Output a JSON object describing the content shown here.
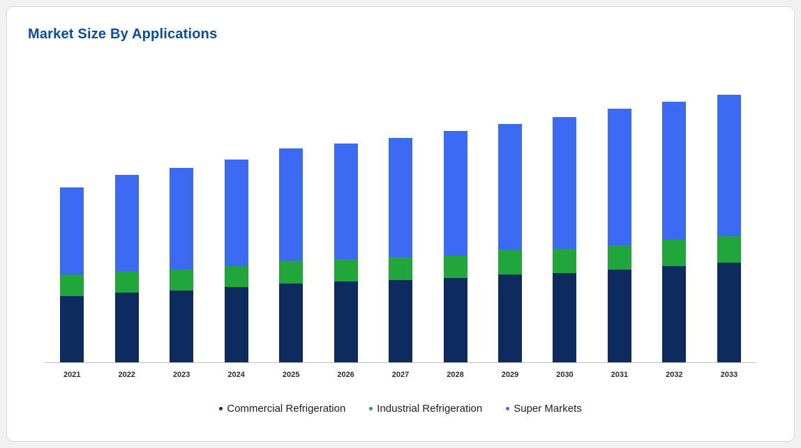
{
  "header": {
    "title": "Market Size By Applications"
  },
  "chart_data": {
    "type": "bar",
    "stacked": true,
    "title": "Market Size By Applications",
    "xlabel": "",
    "ylabel": "",
    "grid": false,
    "legend_position": "bottom",
    "ylim": [
      0,
      160
    ],
    "categories": [
      "2021",
      "2022",
      "2023",
      "2024",
      "2025",
      "2026",
      "2027",
      "2028",
      "2029",
      "2030",
      "2031",
      "2032",
      "2033"
    ],
    "series": [
      {
        "name": "Commercial Refrigeration",
        "color": "#0d2b5e",
        "values": [
          38,
          40,
          41,
          43,
          45,
          46,
          47,
          48,
          50,
          51,
          53,
          55,
          57
        ]
      },
      {
        "name": "Industrial Refrigeration",
        "color": "#21a63c",
        "values": [
          12,
          12,
          12,
          12,
          13,
          13,
          13,
          13,
          14,
          14,
          14,
          15,
          15
        ]
      },
      {
        "name": "Super Markets",
        "color": "#3d6af2",
        "values": [
          50,
          55,
          58,
          61,
          64,
          66,
          68,
          71,
          72,
          75,
          78,
          79,
          81
        ]
      }
    ]
  }
}
